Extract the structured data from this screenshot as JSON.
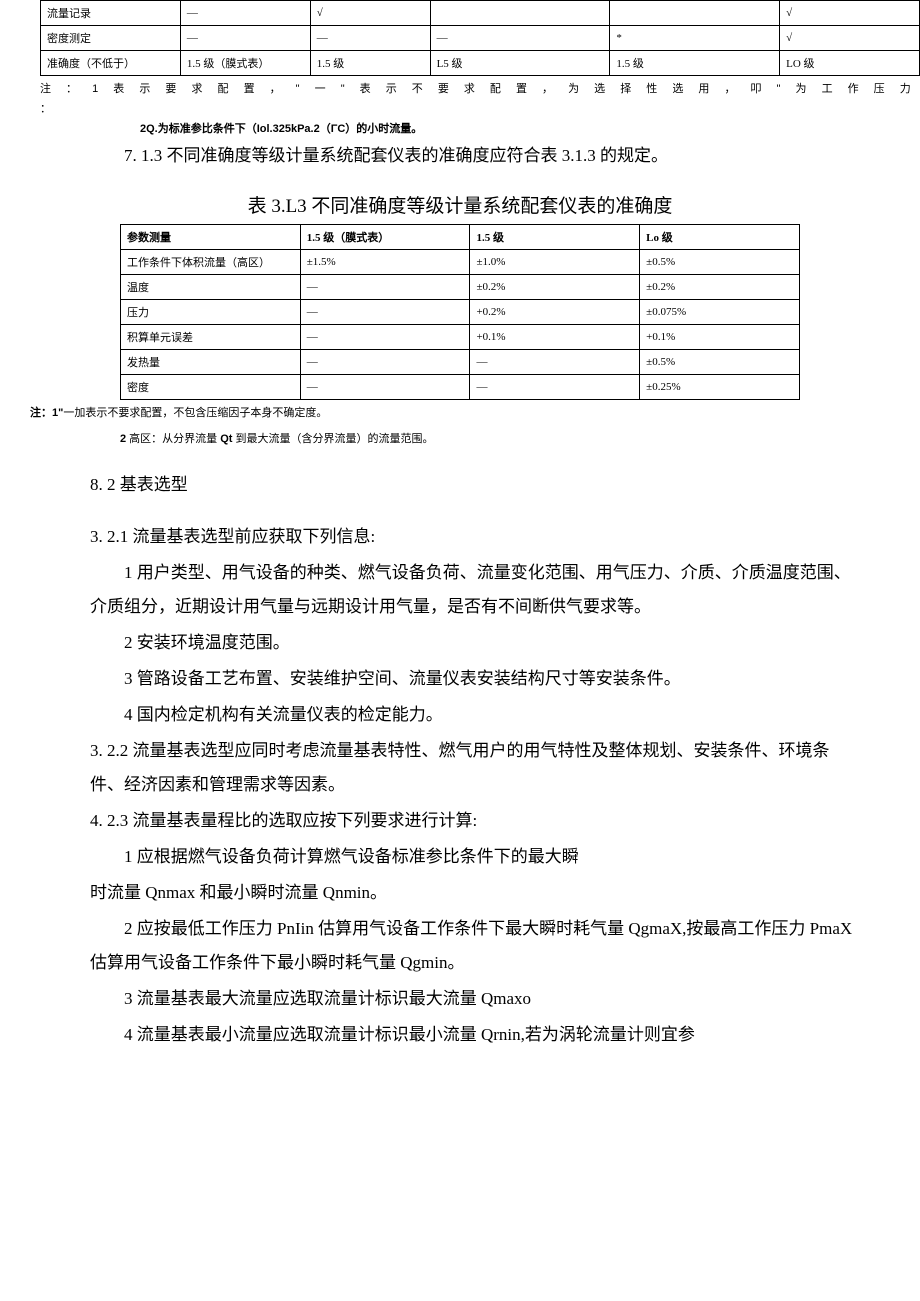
{
  "table1": {
    "rows": [
      [
        "流量记录",
        "—",
        "√",
        "",
        "",
        "√"
      ],
      [
        "密度测定",
        "—",
        "—",
        "—",
        "*",
        "√"
      ],
      [
        "准确度（不低于）",
        "1.5 级（膜式表）",
        "1.5 级",
        "L5 级",
        "1.5 级",
        "LO 级"
      ]
    ],
    "col_widths": [
      "140px",
      "130px",
      "120px",
      "180px",
      "170px",
      "140px"
    ]
  },
  "note1_line1": "注 ： 1  表 示 要 求 配 置 ， \" 一 \" 表 示 不 要 求 配 置 ， 为 选 择 性 选 用 ， 叩 \" 为 工 作 压 力 ：",
  "note1_line2": "2Q.为标准参比条件下（Iol.325kPa.2（ΓC）的小时流量。",
  "para_713": "7. 1.3 不同准确度等级计量系统配套仪表的准确度应符合表 3.1.3 的规定。",
  "table2_title": "表 3.L3 不同准确度等级计量系统配套仪表的准确度",
  "table2": {
    "header": [
      "参数测量",
      "1.5 级（膜式表）",
      "1.5 级",
      "Lo 级"
    ],
    "rows": [
      [
        "工作条件下体积流量（高区）",
        "±1.5%",
        "±1.0%",
        "±0.5%"
      ],
      [
        "温度",
        "—",
        "±0.2%",
        "±0.2%"
      ],
      [
        "压力",
        "—",
        "+0.2%",
        "±0.075%"
      ],
      [
        "积算单元误差",
        "—",
        "+0.1%",
        "+0.1%"
      ],
      [
        "发热量",
        "—",
        "—",
        "±0.5%"
      ],
      [
        "密度",
        "—",
        "—",
        "±0.25%"
      ]
    ],
    "col_widths": [
      "180px",
      "170px",
      "170px",
      "160px"
    ]
  },
  "note2_line1_a": "注：1\"",
  "note2_line1_b": "一加表示不要求配置，不包含压缩因子本身不确定度。",
  "note2_line2_a": "2",
  "note2_line2_b": " 高区：从分界流量 ",
  "note2_line2_c": "Qt",
  "note2_line2_d": " 到最大流量（含分界流量）的流量范围。",
  "heading_82": "8. 2 基表选型",
  "para_321": "3. 2.1 流量基表选型前应获取下列信息:",
  "para_321_1": "1 用户类型、用气设备的种类、燃气设备负荷、流量变化范围、用气压力、介质、介质温度范围、介质组分，近期设计用气量与远期设计用气量，是否有不间断供气要求等。",
  "para_321_2": "2 安装环境温度范围。",
  "para_321_3": "3 管路设备工艺布置、安装维护空间、流量仪表安装结构尺寸等安装条件。",
  "para_321_4": "4 国内检定机构有关流量仪表的检定能力。",
  "para_322": "3. 2.2 流量基表选型应同时考虑流量基表特性、燃气用户的用气特性及整体规划、安装条件、环境条件、经济因素和管理需求等因素。",
  "para_423": "4. 2.3 流量基表量程比的选取应按下列要求进行计算:",
  "para_423_1": "1 应根据燃气设备负荷计算燃气设备标准参比条件下的最大瞬",
  "para_423_1b": "时流量 Qnmax 和最小瞬时流量 Qnmin。",
  "para_423_2": "2 应按最低工作压力 PnIin 估算用气设备工作条件下最大瞬时耗气量 QgmaX,按最高工作压力 PmaX 估算用气设备工作条件下最小瞬时耗气量 Qgmin。",
  "para_423_3": "3 流量基表最大流量应选取流量计标识最大流量 Qmaxo",
  "para_423_4": "4 流量基表最小流量应选取流量计标识最小流量 Qrnin,若为涡轮流量计则宜参"
}
